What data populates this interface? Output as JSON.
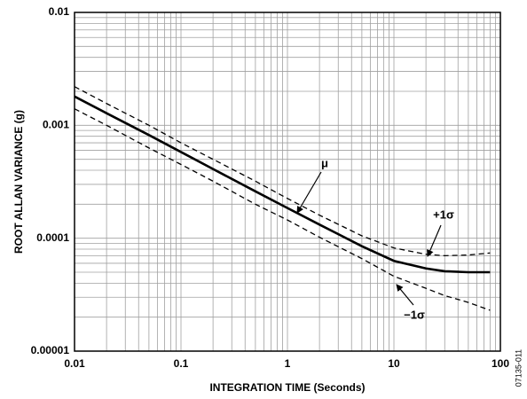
{
  "chart_data": {
    "type": "line",
    "xlabel": "INTEGRATION TIME (Seconds)",
    "ylabel": "ROOT ALLAN VARIANCE (g)",
    "figure_id": "07135-011",
    "xscale": "log",
    "yscale": "log",
    "grid": true,
    "xlim": [
      0.01,
      100
    ],
    "ylim": [
      1e-05,
      0.01
    ],
    "xticks": [
      0.01,
      0.1,
      1,
      10,
      100
    ],
    "yticks": [
      1e-05,
      0.0001,
      0.001,
      0.01
    ],
    "xminorticks": [
      0.02,
      0.03,
      0.04,
      0.05,
      0.06,
      0.07,
      0.08,
      0.09,
      0.2,
      0.3,
      0.4,
      0.5,
      0.6,
      0.7,
      0.8,
      0.9,
      2,
      3,
      4,
      5,
      6,
      7,
      8,
      9,
      20,
      30,
      40,
      50,
      60,
      70,
      80,
      90
    ],
    "yminorticks": [
      2e-05,
      3e-05,
      4e-05,
      5e-05,
      6e-05,
      7e-05,
      8e-05,
      9e-05,
      0.0002,
      0.0003,
      0.0004,
      0.0005,
      0.0006,
      0.0007,
      0.0008,
      0.0009,
      0.002,
      0.003,
      0.004,
      0.005,
      0.006,
      0.007,
      0.008,
      0.009
    ],
    "x": [
      0.01,
      0.02,
      0.05,
      0.1,
      0.2,
      0.5,
      1,
      2,
      5,
      10,
      20,
      30,
      50,
      80
    ],
    "series": [
      {
        "name": "μ",
        "color": "#000000",
        "style": "solid",
        "values": [
          0.0018,
          0.00128,
          0.00082,
          0.00058,
          0.00041,
          0.00026,
          0.000185,
          0.000132,
          8.5e-05,
          6.3e-05,
          5.4e-05,
          5.1e-05,
          5e-05,
          5e-05
        ]
      },
      {
        "name": "+1σ",
        "color": "#000000",
        "style": "dashed",
        "values": [
          0.0022,
          0.00156,
          0.001,
          0.0007,
          0.0005,
          0.00032,
          0.000225,
          0.00016,
          0.000105,
          8.2e-05,
          7.2e-05,
          7e-05,
          7.1e-05,
          7.4e-05
        ]
      },
      {
        "name": "−1σ",
        "color": "#000000",
        "style": "dashed",
        "values": [
          0.0014,
          0.001,
          0.00063,
          0.00045,
          0.00032,
          0.0002,
          0.000145,
          0.000102,
          6.6e-05,
          4.6e-05,
          3.6e-05,
          3.1e-05,
          2.7e-05,
          2.3e-05
        ]
      }
    ]
  }
}
